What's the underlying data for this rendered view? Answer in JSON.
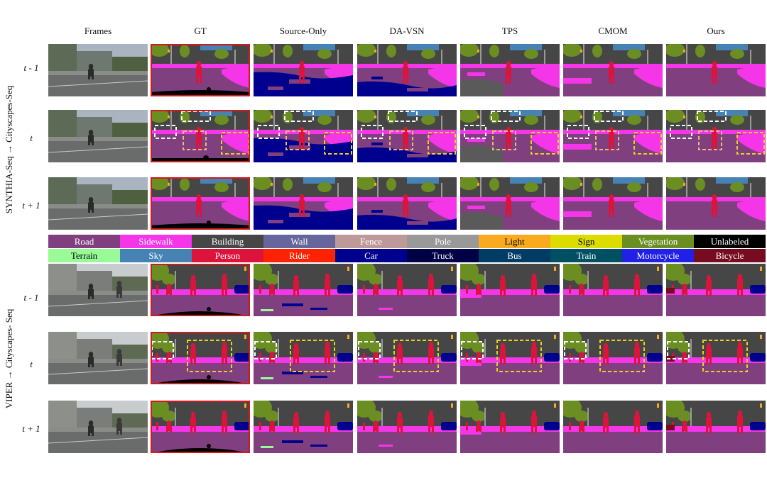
{
  "columns": [
    "Frames",
    "GT",
    "Source-Only",
    "DA-VSN",
    "TPS",
    "CMOM",
    "Ours"
  ],
  "panels": [
    {
      "title": "SYNTHIA-Seq → Cityscapes-Seq",
      "rows": [
        "t - 1",
        "t",
        "t + 1"
      ]
    },
    {
      "title": "VIPER → Cityscapes- Seq",
      "rows": [
        "t - 1",
        "t",
        "t + 1"
      ]
    }
  ],
  "legend": [
    {
      "name": "Road",
      "color": "#80407f",
      "text": "#ffffff"
    },
    {
      "name": "Sidewalk",
      "color": "#f535e8",
      "text": "#ffffff"
    },
    {
      "name": "Building",
      "color": "#464646",
      "text": "#ffffff"
    },
    {
      "name": "Wall",
      "color": "#66669c",
      "text": "#ffffff"
    },
    {
      "name": "Fence",
      "color": "#be9999",
      "text": "#ffffff"
    },
    {
      "name": "Pole",
      "color": "#999999",
      "text": "#ffffff"
    },
    {
      "name": "Light",
      "color": "#f9aa1e",
      "text": "#000000"
    },
    {
      "name": "Sign",
      "color": "#dcdc00",
      "text": "#000000"
    },
    {
      "name": "Vegetation",
      "color": "#6b8e23",
      "text": "#ffffff"
    },
    {
      "name": "Unlabeled",
      "color": "#000000",
      "text": "#ffffff"
    },
    {
      "name": "Terrain",
      "color": "#98fb98",
      "text": "#000000"
    },
    {
      "name": "Sky",
      "color": "#4682b4",
      "text": "#ffffff"
    },
    {
      "name": "Person",
      "color": "#dc143c",
      "text": "#ffffff"
    },
    {
      "name": "Rider",
      "color": "#ff2200",
      "text": "#ffffff"
    },
    {
      "name": "Car",
      "color": "#00008e",
      "text": "#ffffff"
    },
    {
      "name": "Truck",
      "color": "#000046",
      "text": "#ffffff"
    },
    {
      "name": "Bus",
      "color": "#003c64",
      "text": "#ffffff"
    },
    {
      "name": "Train",
      "color": "#005064",
      "text": "#ffffff"
    },
    {
      "name": "Motorcycle",
      "color": "#2020e6",
      "text": "#ffffff"
    },
    {
      "name": "Bicycle",
      "color": "#770b20",
      "text": "#ffffff"
    }
  ],
  "highlight_box_colors": [
    "#ffffff",
    "#f0b878",
    "#e8d020"
  ],
  "gt_border_color": "#d11a1a"
}
